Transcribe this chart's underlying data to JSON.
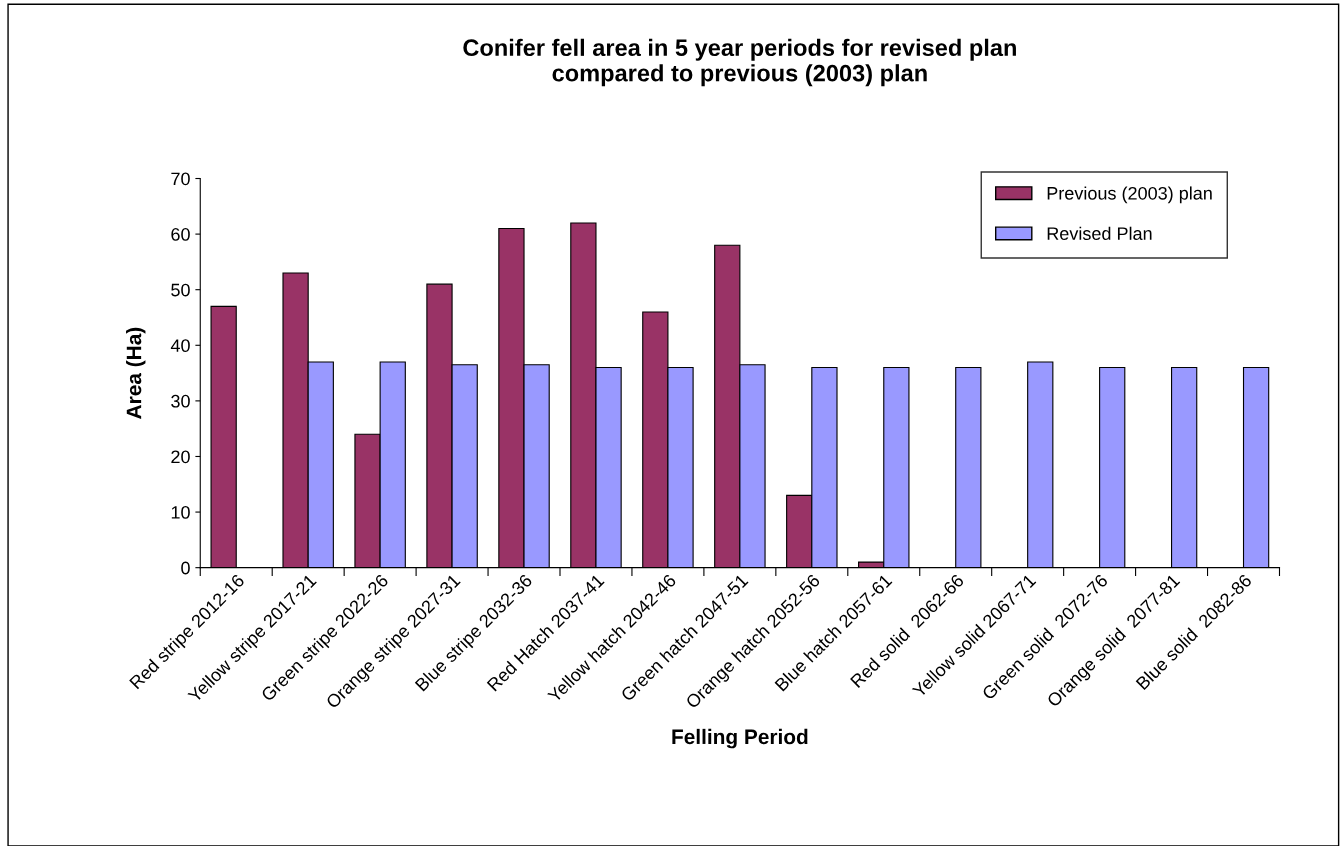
{
  "chart_data": {
    "type": "bar",
    "title": "Conifer fell area in 5 year periods for revised plan\ncompared to previous (2003) plan",
    "xlabel": "Felling Period",
    "ylabel": "Area (Ha)",
    "categories": [
      "Red stripe 2012-16",
      "Yellow stripe 2017-21",
      "Green stripe 2022-26",
      "Orange stripe 2027-31",
      "Blue stripe 2032-36",
      "Red Hatch 2037-41",
      "Yellow hatch 2042-46",
      "Green hatch 2047-51",
      "Orange hatch 2052-56",
      "Blue hatch 2057-61",
      "Red solid  2062-66",
      "Yellow solid 2067-71",
      "Green solid  2072-76",
      "Orange solid  2077-81",
      "Blue solid  2082-86"
    ],
    "series": [
      {
        "name": "Previous (2003) plan",
        "color": "#993366",
        "values": [
          47,
          53,
          24,
          51,
          61,
          62,
          46,
          58,
          13,
          1,
          null,
          null,
          null,
          null,
          null
        ]
      },
      {
        "name": "Revised Plan",
        "color": "#9999ff",
        "values": [
          null,
          37,
          37,
          36.5,
          36.5,
          36,
          36,
          36.5,
          36,
          36,
          36,
          37,
          36,
          36,
          36
        ]
      }
    ],
    "ylim": [
      0,
      70
    ],
    "yticks": [
      0,
      10,
      20,
      30,
      40,
      50,
      60,
      70
    ],
    "grid": false,
    "legend": "top right"
  }
}
